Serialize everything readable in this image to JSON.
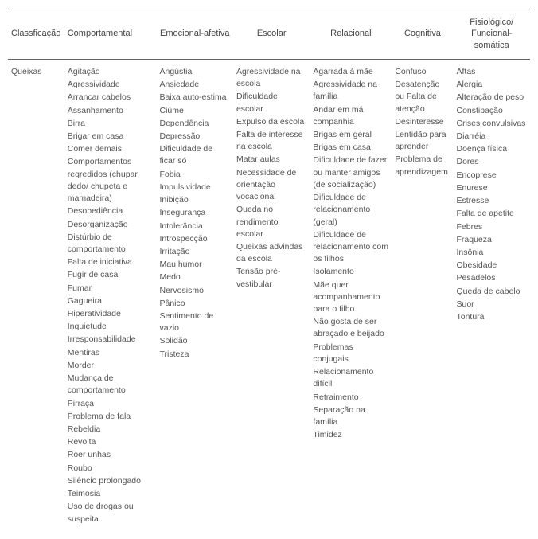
{
  "table": {
    "headers": [
      "Classficação",
      "Comportamental",
      "Emocional-afetiva",
      "Escolar",
      "Relacional",
      "Cognitiva",
      "Fisiológico/ Funcional-somática"
    ],
    "rowLabel": "Queixas",
    "columns": {
      "comportamental": [
        "Agitação",
        "Agressividade",
        "Arrancar cabelos",
        "Assanhamento",
        "Birra",
        "Brigar em casa",
        "Comer demais",
        "Comportamentos regredidos (chupar dedo/ chupeta e mamadeira)",
        "Desobediência",
        "Desorganização",
        "Distúrbio de comportamento",
        "Falta de iniciativa",
        "Fugir de casa",
        "Fumar",
        "Gagueira",
        "Hiperatividade",
        "Inquietude",
        "Irresponsabilidade",
        "Mentiras",
        "Morder",
        "Mudança de comportamento",
        "Pirraça",
        "Problema de fala",
        "Rebeldia",
        "Revolta",
        "Roer unhas",
        "Roubo",
        "Silêncio prolongado",
        "Teimosia",
        "Uso de drogas ou suspeita"
      ],
      "emocional": [
        "Angústia",
        "Ansiedade",
        "Baixa auto-estima",
        "Ciúme",
        "Dependência",
        "Depressão",
        "Dificuldade de ficar só",
        "Fobia",
        "Impulsividade",
        "Inibição",
        "Insegurança",
        "Intolerância",
        "Introspecção",
        "Irritação",
        "Mau humor",
        "Medo",
        "Nervosismo",
        "Pânico",
        "Sentimento de vazio",
        "Solidão",
        "Tristeza"
      ],
      "escolar": [
        "Agressividade na escola",
        "Dificuldade escolar",
        "Expulso da escola",
        "Falta de interesse na escola",
        "Matar aulas",
        "Necessidade de orientação vocacional",
        "Queda no rendimento escolar",
        "Queixas advindas da escola",
        "Tensão pré-vestibular"
      ],
      "relacional": [
        "Agarrada à mãe",
        "Agressividade na família",
        "Andar em má companhia",
        "Brigas em geral",
        "Brigas em casa",
        "Dificuldade de fazer ou manter amigos (de socialização)",
        "Dificuldade de relacionamento (geral)",
        "Dificuldade de relacionamento com os filhos",
        "Isolamento",
        "Mãe quer acompanhamento para o filho",
        "Não gosta de ser abraçado e beijado",
        "Problemas conjugais",
        "Relacionamento difícil",
        "Retraimento",
        "Separação na família",
        "Timidez"
      ],
      "cognitiva": [
        "Confuso",
        "Desatenção ou Falta de atenção",
        "Desinteresse",
        "Lentidão para aprender",
        "Problema de aprendizagem"
      ],
      "fisiologico": [
        "Aftas",
        "Alergia",
        "Alteração de peso",
        "Constipação",
        "Crises convulsivas",
        "Diarréia",
        "Doença física",
        "Dores",
        "Encoprese",
        "Enurese",
        "Estresse",
        "Falta de apetite",
        "Febres",
        "Fraqueza",
        "Insônia",
        "Obesidade",
        "Pesadelos",
        "Queda de cabelo",
        "Suor",
        "Tontura"
      ]
    }
  }
}
